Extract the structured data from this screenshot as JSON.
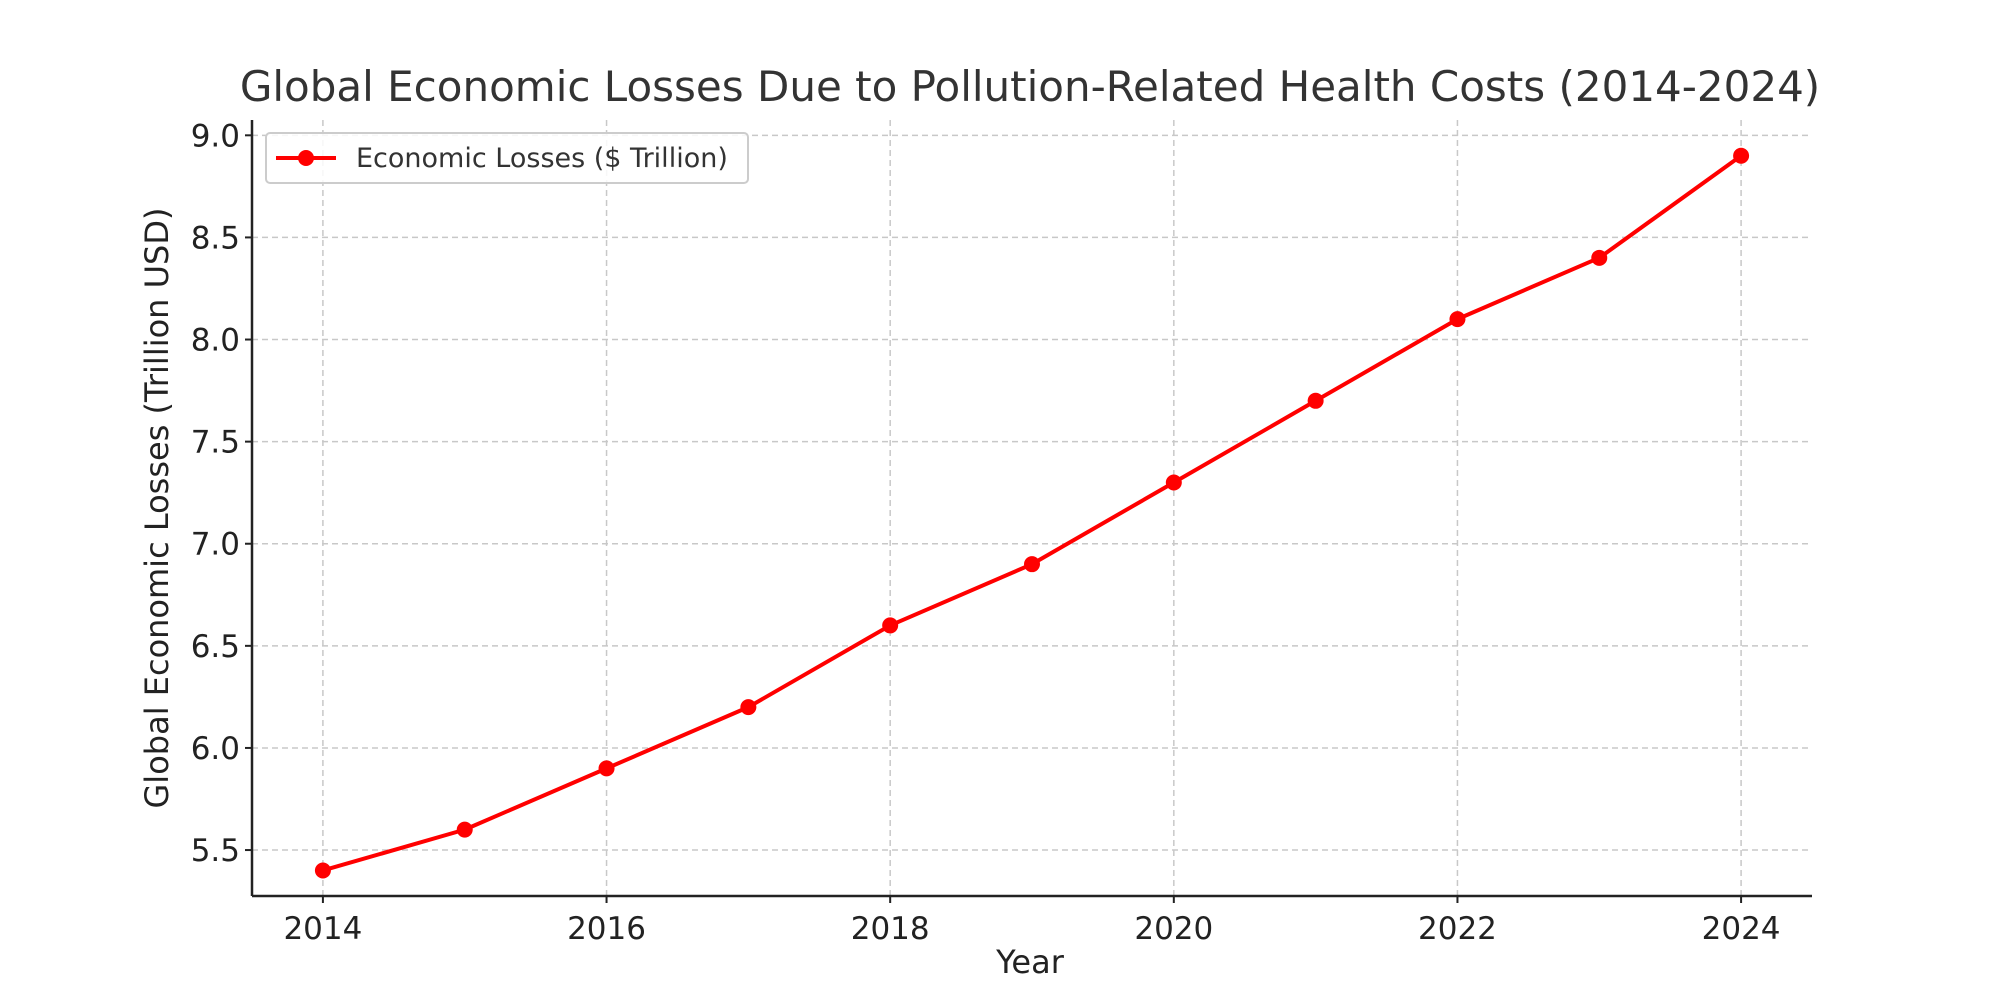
{
  "chart_data": {
    "type": "line",
    "title": "Global Economic Losses Due to Pollution-Related Health Costs (2014-2024)",
    "xlabel": "Year",
    "ylabel": "Global Economic Losses (Trillion USD)",
    "x": [
      2014,
      2015,
      2016,
      2017,
      2018,
      2019,
      2020,
      2021,
      2022,
      2023,
      2024
    ],
    "series": [
      {
        "name": "Economic Losses ($ Trillion)",
        "color": "#ff0000",
        "values": [
          5.4,
          5.6,
          5.9,
          6.2,
          6.6,
          6.9,
          7.3,
          7.7,
          8.1,
          8.4,
          8.9
        ]
      }
    ],
    "xlim": [
      2013.5,
      2024.5
    ],
    "ylim": [
      5.275,
      9.075
    ],
    "xticks": [
      "2014",
      "2016",
      "2018",
      "2020",
      "2022",
      "2024"
    ],
    "yticks": [
      "5.5",
      "6.0",
      "6.5",
      "7.0",
      "7.5",
      "8.0",
      "8.5",
      "9.0"
    ],
    "grid": true,
    "legend_position": "top-left"
  }
}
